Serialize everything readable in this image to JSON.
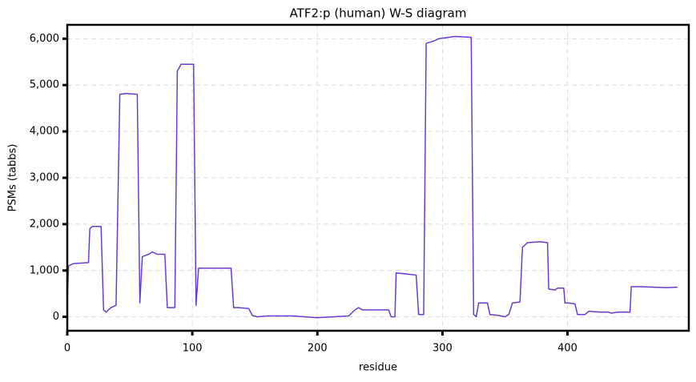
{
  "chart_data": {
    "type": "line",
    "title": "ATF2:p (human) W-S diagram",
    "x_label": "residue",
    "y_label": "PSMs (tabbs)",
    "color": "#6a3bd4",
    "grid": true,
    "xlim": [
      0,
      497
    ],
    "ylim": [
      -300,
      6300
    ],
    "xticks": [
      0,
      100,
      200,
      300,
      400
    ],
    "yticks": [
      {
        "value": 0,
        "label": "0"
      },
      {
        "value": 1000,
        "label": "1,000"
      },
      {
        "value": 2000,
        "label": "2,000"
      },
      {
        "value": 3000,
        "label": "3,000"
      },
      {
        "value": 4000,
        "label": "4,000"
      },
      {
        "value": 5000,
        "label": "5,000"
      },
      {
        "value": 6000,
        "label": "6,000"
      }
    ],
    "x": [
      0,
      1,
      5,
      17,
      18,
      20,
      27,
      29,
      31,
      35,
      39,
      42,
      47,
      56,
      58,
      60,
      65,
      68,
      72,
      78,
      80,
      86,
      88,
      91,
      101,
      103,
      105,
      115,
      131,
      133,
      137,
      145,
      148,
      152,
      160,
      180,
      200,
      225,
      230,
      233,
      236,
      250,
      257,
      259,
      262,
      263,
      279,
      281,
      285,
      287,
      293,
      297,
      310,
      323,
      325,
      327,
      329,
      336,
      338,
      345,
      350,
      353,
      356,
      362,
      364,
      368,
      378,
      384,
      385,
      390,
      392,
      397,
      398,
      400,
      406,
      408,
      414,
      417,
      427,
      433,
      435,
      440,
      450,
      451,
      460,
      479,
      488
    ],
    "values": [
      300,
      1100,
      1150,
      1170,
      1900,
      1950,
      1950,
      150,
      100,
      200,
      250,
      4800,
      4820,
      4800,
      300,
      1300,
      1350,
      1400,
      1350,
      1350,
      200,
      200,
      5300,
      5450,
      5450,
      250,
      1050,
      1050,
      1050,
      200,
      200,
      180,
      30,
      0,
      20,
      20,
      -20,
      20,
      150,
      200,
      150,
      150,
      150,
      0,
      0,
      950,
      900,
      50,
      50,
      5900,
      5950,
      6000,
      6050,
      6030,
      50,
      0,
      300,
      300,
      50,
      30,
      0,
      50,
      300,
      320,
      1500,
      1600,
      1620,
      1600,
      600,
      580,
      620,
      620,
      300,
      300,
      280,
      50,
      50,
      120,
      100,
      100,
      80,
      100,
      100,
      650,
      650,
      630,
      640
    ]
  }
}
